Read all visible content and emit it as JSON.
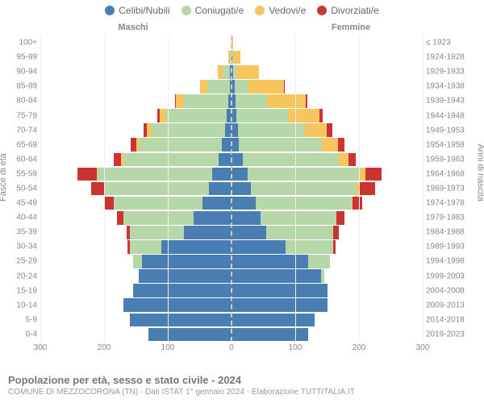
{
  "chart": {
    "type": "population-pyramid",
    "legend": [
      {
        "label": "Celibi/Nubili",
        "color": "#4a7db2"
      },
      {
        "label": "Coniugati/e",
        "color": "#b6d7a8"
      },
      {
        "label": "Vedovi/e",
        "color": "#f7c55e"
      },
      {
        "label": "Divorziati/e",
        "color": "#cc3333"
      }
    ],
    "male_label": "Maschi",
    "female_label": "Femmine",
    "y_left_title": "Fasce di età",
    "y_right_title": "Anni di nascita",
    "x_max": 300,
    "x_ticks": [
      300,
      200,
      100,
      0,
      100,
      200,
      300
    ],
    "x_tick_labels": [
      "300",
      "200",
      "100",
      "0",
      "100",
      "200",
      "300"
    ],
    "title": "Popolazione per età, sesso e stato civile - 2024",
    "subtitle": "COMUNE DI MEZZOCORONA (TN) - Dati ISTAT 1° gennaio 2024 - Elaborazione TUTTITALIA.IT",
    "grid_color": "#eeeeee",
    "background_color": "#ffffff",
    "center_line_color": "#cccccc",
    "rows": [
      {
        "age": "0-4",
        "birth": "2019-2023",
        "m": {
          "single": 130,
          "married": 0,
          "widowed": 0,
          "divorced": 0
        },
        "f": {
          "single": 120,
          "married": 0,
          "widowed": 0,
          "divorced": 0
        }
      },
      {
        "age": "5-9",
        "birth": "2014-2018",
        "m": {
          "single": 160,
          "married": 0,
          "widowed": 0,
          "divorced": 0
        },
        "f": {
          "single": 130,
          "married": 0,
          "widowed": 0,
          "divorced": 0
        }
      },
      {
        "age": "10-14",
        "birth": "2009-2013",
        "m": {
          "single": 170,
          "married": 0,
          "widowed": 0,
          "divorced": 0
        },
        "f": {
          "single": 150,
          "married": 0,
          "widowed": 0,
          "divorced": 0
        }
      },
      {
        "age": "15-19",
        "birth": "2004-2008",
        "m": {
          "single": 155,
          "married": 0,
          "widowed": 0,
          "divorced": 0
        },
        "f": {
          "single": 150,
          "married": 0,
          "widowed": 0,
          "divorced": 0
        }
      },
      {
        "age": "20-24",
        "birth": "1999-2003",
        "m": {
          "single": 145,
          "married": 0,
          "widowed": 0,
          "divorced": 0
        },
        "f": {
          "single": 140,
          "married": 5,
          "widowed": 0,
          "divorced": 0
        }
      },
      {
        "age": "25-29",
        "birth": "1994-1998",
        "m": {
          "single": 140,
          "married": 15,
          "widowed": 0,
          "divorced": 0
        },
        "f": {
          "single": 120,
          "married": 35,
          "widowed": 0,
          "divorced": 0
        }
      },
      {
        "age": "30-34",
        "birth": "1989-1993",
        "m": {
          "single": 110,
          "married": 50,
          "widowed": 0,
          "divorced": 3
        },
        "f": {
          "single": 85,
          "married": 75,
          "widowed": 0,
          "divorced": 3
        }
      },
      {
        "age": "35-39",
        "birth": "1984-1988",
        "m": {
          "single": 75,
          "married": 85,
          "widowed": 0,
          "divorced": 5
        },
        "f": {
          "single": 55,
          "married": 105,
          "widowed": 0,
          "divorced": 8
        }
      },
      {
        "age": "40-44",
        "birth": "1979-1983",
        "m": {
          "single": 60,
          "married": 110,
          "widowed": 0,
          "divorced": 10
        },
        "f": {
          "single": 45,
          "married": 120,
          "widowed": 0,
          "divorced": 12
        }
      },
      {
        "age": "45-49",
        "birth": "1974-1978",
        "m": {
          "single": 45,
          "married": 140,
          "widowed": 0,
          "divorced": 15
        },
        "f": {
          "single": 38,
          "married": 150,
          "widowed": 2,
          "divorced": 15
        }
      },
      {
        "age": "50-54",
        "birth": "1969-1973",
        "m": {
          "single": 35,
          "married": 165,
          "widowed": 0,
          "divorced": 20
        },
        "f": {
          "single": 30,
          "married": 165,
          "widowed": 5,
          "divorced": 25
        }
      },
      {
        "age": "55-59",
        "birth": "1964-1968",
        "m": {
          "single": 30,
          "married": 180,
          "widowed": 2,
          "divorced": 30
        },
        "f": {
          "single": 25,
          "married": 175,
          "widowed": 10,
          "divorced": 25
        }
      },
      {
        "age": "60-64",
        "birth": "1959-1963",
        "m": {
          "single": 20,
          "married": 150,
          "widowed": 3,
          "divorced": 12
        },
        "f": {
          "single": 18,
          "married": 150,
          "widowed": 15,
          "divorced": 12
        }
      },
      {
        "age": "65-69",
        "birth": "1954-1958",
        "m": {
          "single": 15,
          "married": 130,
          "widowed": 5,
          "divorced": 8
        },
        "f": {
          "single": 12,
          "married": 130,
          "widowed": 25,
          "divorced": 10
        }
      },
      {
        "age": "70-74",
        "birth": "1949-1953",
        "m": {
          "single": 10,
          "married": 115,
          "widowed": 8,
          "divorced": 5
        },
        "f": {
          "single": 10,
          "married": 105,
          "widowed": 35,
          "divorced": 8
        }
      },
      {
        "age": "75-79",
        "birth": "1944-1948",
        "m": {
          "single": 8,
          "married": 95,
          "widowed": 10,
          "divorced": 3
        },
        "f": {
          "single": 8,
          "married": 80,
          "widowed": 50,
          "divorced": 5
        }
      },
      {
        "age": "80-84",
        "birth": "1939-1943",
        "m": {
          "single": 5,
          "married": 70,
          "widowed": 12,
          "divorced": 2
        },
        "f": {
          "single": 6,
          "married": 50,
          "widowed": 60,
          "divorced": 3
        }
      },
      {
        "age": "85-89",
        "birth": "1934-1938",
        "m": {
          "single": 3,
          "married": 35,
          "widowed": 12,
          "divorced": 0
        },
        "f": {
          "single": 5,
          "married": 22,
          "widowed": 55,
          "divorced": 1
        }
      },
      {
        "age": "90-94",
        "birth": "1929-1933",
        "m": {
          "single": 2,
          "married": 12,
          "widowed": 8,
          "divorced": 0
        },
        "f": {
          "single": 3,
          "married": 5,
          "widowed": 35,
          "divorced": 0
        }
      },
      {
        "age": "95-99",
        "birth": "1924-1928",
        "m": {
          "single": 0,
          "married": 2,
          "widowed": 3,
          "divorced": 0
        },
        "f": {
          "single": 1,
          "married": 1,
          "widowed": 12,
          "divorced": 0
        }
      },
      {
        "age": "100+",
        "birth": "≤ 1923",
        "m": {
          "single": 0,
          "married": 0,
          "widowed": 0,
          "divorced": 0
        },
        "f": {
          "single": 0,
          "married": 0,
          "widowed": 2,
          "divorced": 0
        }
      }
    ]
  }
}
